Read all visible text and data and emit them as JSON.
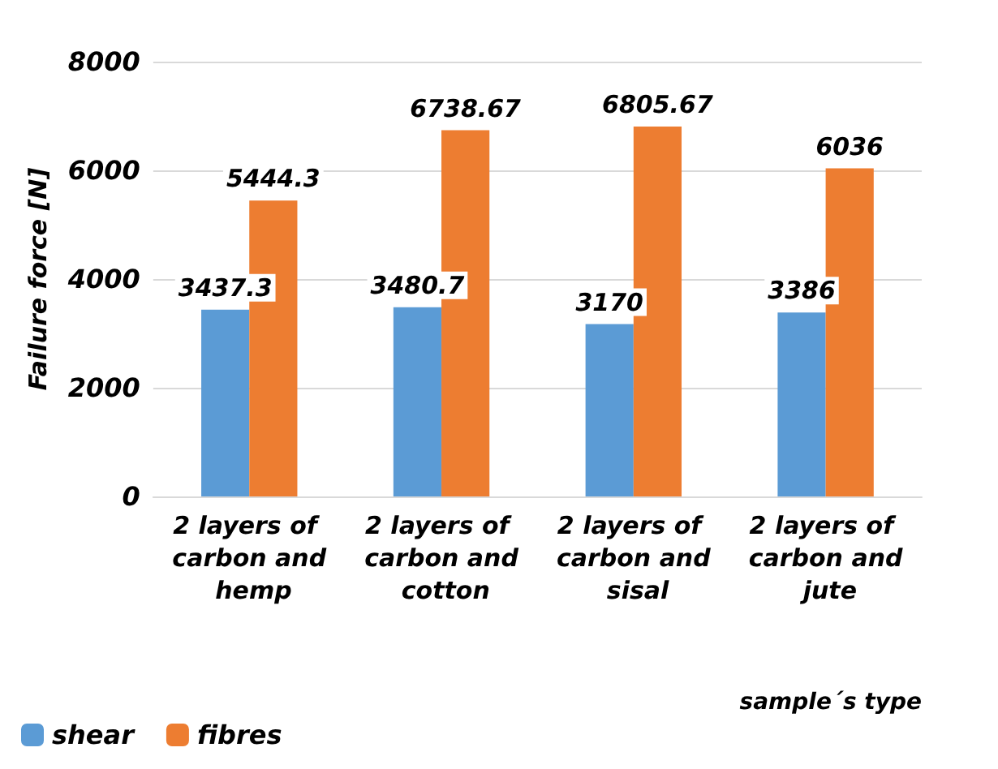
{
  "chart_data": {
    "type": "bar",
    "ylabel": "Failure force [N]",
    "xlabel": "sample´s type",
    "categories": [
      "2 layers of carbon and hemp",
      "2 layers of carbon and cotton",
      "2 layers of carbon and sisal",
      "2 layers of carbon and jute"
    ],
    "series": [
      {
        "name": "shear",
        "color": "#5b9bd5",
        "values": [
          3437.3,
          3480.7,
          3170,
          3386
        ]
      },
      {
        "name": "fibres",
        "color": "#ed7d31",
        "values": [
          5444.3,
          6738.67,
          6805.67,
          6036
        ]
      }
    ],
    "ylim": [
      0,
      8000
    ],
    "yticks": [
      0,
      2000,
      4000,
      6000,
      8000
    ],
    "grid": "y",
    "legend": "bottom left",
    "data_labels": true
  }
}
